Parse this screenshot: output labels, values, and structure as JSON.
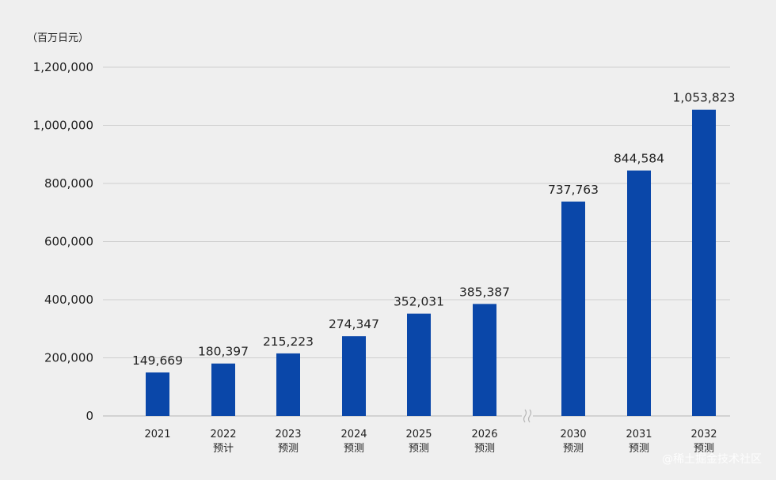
{
  "chart_data": {
    "type": "bar",
    "unit_label": "（百万日元）",
    "categories": [
      {
        "year": "2021",
        "note": ""
      },
      {
        "year": "2022",
        "note": "预计"
      },
      {
        "year": "2023",
        "note": "预测"
      },
      {
        "year": "2024",
        "note": "预测"
      },
      {
        "year": "2025",
        "note": "预测"
      },
      {
        "year": "2026",
        "note": "预测"
      },
      {
        "year": "2030",
        "note": "预测"
      },
      {
        "year": "2031",
        "note": "预测"
      },
      {
        "year": "2032",
        "note": "预测"
      }
    ],
    "values": [
      149669,
      180397,
      215223,
      274347,
      352031,
      385387,
      737763,
      844584,
      1053823
    ],
    "value_labels": [
      "149,669",
      "180,397",
      "215,223",
      "274,347",
      "352,031",
      "385,387",
      "737,763",
      "844,584",
      "1,053,823"
    ],
    "ylim": [
      0,
      1200000
    ],
    "y_ticks": [
      0,
      200000,
      400000,
      600000,
      800000,
      1000000,
      1200000
    ],
    "y_tick_labels": [
      "0",
      "200,000",
      "400,000",
      "600,000",
      "800,000",
      "1,000,000",
      "1,200,000"
    ],
    "axis_break_after_index": 5,
    "grid": true,
    "bar_color": "#0a47a9",
    "grid_color": "#cfcfcf"
  },
  "watermark": "@稀土掘金技术社区"
}
